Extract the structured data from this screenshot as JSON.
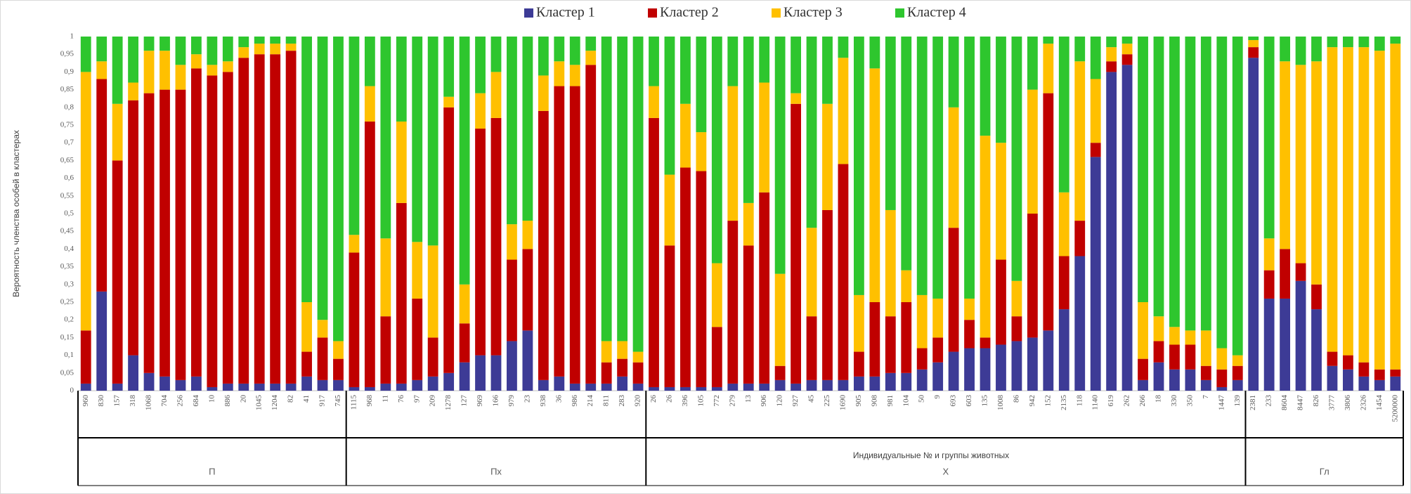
{
  "chart_data": {
    "type": "stacked_bar",
    "y_label": "Вероятность членства особей в кластерах",
    "x_label": "Индивидуальные № и группы животных",
    "groups": [
      {
        "name": "П",
        "categories": [
          "960",
          "830",
          "157",
          "318",
          "1068",
          "704",
          "256",
          "684",
          "10",
          "886",
          "20",
          "1045",
          "1204",
          "82",
          "41",
          "917",
          "745"
        ]
      },
      {
        "name": "Пх",
        "categories": [
          "1115",
          "968",
          "11",
          "76",
          "97",
          "209",
          "1278",
          "127",
          "969",
          "166",
          "979",
          "23",
          "938",
          "36",
          "986",
          "214",
          "811",
          "283",
          "920"
        ]
      },
      {
        "name": "Х",
        "categories": [
          "26",
          "26",
          "396",
          "105",
          "772",
          "279",
          "13",
          "906",
          "120",
          "927",
          "45",
          "225",
          "1690",
          "905",
          "908",
          "981",
          "104",
          "50",
          "9",
          "693",
          "603",
          "135",
          "1008",
          "86",
          "942",
          "152",
          "2135",
          "118",
          "1140",
          "619",
          "262",
          "266",
          "18",
          "330",
          "350",
          "7",
          "1447",
          "139"
        ]
      },
      {
        "name": "Гл",
        "categories": [
          "2381",
          "233",
          "8604",
          "8447",
          "826",
          "3777",
          "3806",
          "2326",
          "1454",
          "5200000"
        ]
      }
    ],
    "series": [
      {
        "name": "Кластер 1",
        "color": "#3d3b96",
        "values": [
          0.02,
          0.28,
          0.02,
          0.1,
          0.05,
          0.04,
          0.03,
          0.04,
          0.01,
          0.02,
          0.02,
          0.02,
          0.02,
          0.02,
          0.04,
          0.03,
          0.03,
          0.01,
          0.01,
          0.02,
          0.02,
          0.03,
          0.04,
          0.05,
          0.08,
          0.1,
          0.1,
          0.14,
          0.17,
          0.03,
          0.04,
          0.02,
          0.02,
          0.02,
          0.04,
          0.02,
          0.01,
          0.01,
          0.01,
          0.01,
          0.01,
          0.02,
          0.02,
          0.02,
          0.03,
          0.02,
          0.03,
          0.03,
          0.03,
          0.04,
          0.04,
          0.05,
          0.05,
          0.06,
          0.08,
          0.11,
          0.12,
          0.12,
          0.13,
          0.14,
          0.15,
          0.17,
          0.23,
          0.38,
          0.66,
          0.9,
          0.92,
          0.03,
          0.08,
          0.06,
          0.06,
          0.03,
          0.01,
          0.03,
          0.94,
          0.26,
          0.26,
          0.31,
          0.23,
          0.07,
          0.06,
          0.04,
          0.03,
          0.04
        ]
      },
      {
        "name": "Кластер 2",
        "color": "#c00000",
        "values": [
          0.15,
          0.6,
          0.63,
          0.72,
          0.79,
          0.81,
          0.82,
          0.87,
          0.88,
          0.88,
          0.92,
          0.93,
          0.93,
          0.94,
          0.07,
          0.12,
          0.06,
          0.38,
          0.75,
          0.19,
          0.51,
          0.23,
          0.11,
          0.75,
          0.11,
          0.64,
          0.67,
          0.23,
          0.23,
          0.76,
          0.82,
          0.84,
          0.9,
          0.06,
          0.05,
          0.06,
          0.76,
          0.4,
          0.62,
          0.61,
          0.17,
          0.46,
          0.39,
          0.54,
          0.04,
          0.79,
          0.18,
          0.48,
          0.61,
          0.07,
          0.21,
          0.16,
          0.2,
          0.06,
          0.07,
          0.35,
          0.08,
          0.03,
          0.24,
          0.07,
          0.35,
          0.67,
          0.15,
          0.1,
          0.04,
          0.03,
          0.03,
          0.06,
          0.06,
          0.07,
          0.07,
          0.04,
          0.05,
          0.04,
          0.03,
          0.08,
          0.14,
          0.05,
          0.07,
          0.04,
          0.04,
          0.04,
          0.03,
          0.02
        ]
      },
      {
        "name": "Кластер 3",
        "color": "#ffc000",
        "values": [
          0.73,
          0.05,
          0.16,
          0.05,
          0.12,
          0.11,
          0.07,
          0.04,
          0.03,
          0.03,
          0.03,
          0.03,
          0.03,
          0.02,
          0.14,
          0.05,
          0.05,
          0.05,
          0.1,
          0.22,
          0.23,
          0.16,
          0.26,
          0.03,
          0.11,
          0.1,
          0.13,
          0.1,
          0.08,
          0.1,
          0.07,
          0.06,
          0.04,
          0.06,
          0.05,
          0.03,
          0.09,
          0.2,
          0.18,
          0.11,
          0.18,
          0.38,
          0.12,
          0.31,
          0.26,
          0.03,
          0.25,
          0.3,
          0.3,
          0.16,
          0.66,
          0.3,
          0.09,
          0.15,
          0.11,
          0.34,
          0.06,
          0.57,
          0.33,
          0.1,
          0.35,
          0.14,
          0.18,
          0.45,
          0.18,
          0.04,
          0.03,
          0.16,
          0.07,
          0.05,
          0.04,
          0.1,
          0.06,
          0.03,
          0.02,
          0.09,
          0.53,
          0.56,
          0.63,
          0.86,
          0.87,
          0.89,
          0.9,
          0.92
        ]
      },
      {
        "name": "Кластер 4",
        "color": "#2ec62e",
        "values": [
          0.1,
          0.07,
          0.19,
          0.13,
          0.04,
          0.04,
          0.08,
          0.05,
          0.08,
          0.07,
          0.03,
          0.02,
          0.02,
          0.02,
          0.75,
          0.8,
          0.86,
          0.56,
          0.14,
          0.57,
          0.24,
          0.58,
          0.59,
          0.17,
          0.7,
          0.16,
          0.1,
          0.53,
          0.52,
          0.11,
          0.07,
          0.08,
          0.04,
          0.86,
          0.86,
          0.89,
          0.14,
          0.39,
          0.19,
          0.27,
          0.64,
          0.14,
          0.47,
          0.13,
          0.67,
          0.16,
          0.54,
          0.19,
          0.06,
          0.73,
          0.09,
          0.49,
          0.66,
          0.73,
          0.74,
          0.2,
          0.74,
          0.28,
          0.3,
          0.69,
          0.15,
          0.02,
          0.44,
          0.07,
          0.12,
          0.03,
          0.02,
          0.75,
          0.79,
          0.82,
          0.83,
          0.83,
          0.88,
          0.9,
          0.01,
          0.57,
          0.07,
          0.08,
          0.07,
          0.03,
          0.03,
          0.03,
          0.04,
          0.02
        ]
      }
    ],
    "ylim": [
      0,
      1
    ],
    "yticks": [
      0,
      {
        "value": 0.05,
        "label": "0,05"
      },
      {
        "value": 0.1,
        "label": "0,1"
      },
      {
        "value": 0.15,
        "label": "0,15"
      },
      {
        "value": 0.2,
        "label": "0,2"
      },
      {
        "value": 0.25,
        "label": "0,25"
      },
      {
        "value": 0.3,
        "label": "0,3"
      },
      {
        "value": 0.35,
        "label": "0,35"
      },
      {
        "value": 0.4,
        "label": "0,4"
      },
      {
        "value": 0.45,
        "label": "0,45"
      },
      {
        "value": 0.5,
        "label": "0,5"
      },
      {
        "value": 0.55,
        "label": "0,55"
      },
      {
        "value": 0.6,
        "label": "0,6"
      },
      {
        "value": 0.65,
        "label": "0,65"
      },
      {
        "value": 0.7,
        "label": "0,7"
      },
      {
        "value": 0.75,
        "label": "0,75"
      },
      {
        "value": 0.8,
        "label": "0,8"
      },
      {
        "value": 0.85,
        "label": "0,85"
      },
      {
        "value": 0.9,
        "label": "0,9"
      },
      {
        "value": 0.95,
        "label": "0,95"
      },
      1
    ],
    "grid": false,
    "legend": "top"
  }
}
